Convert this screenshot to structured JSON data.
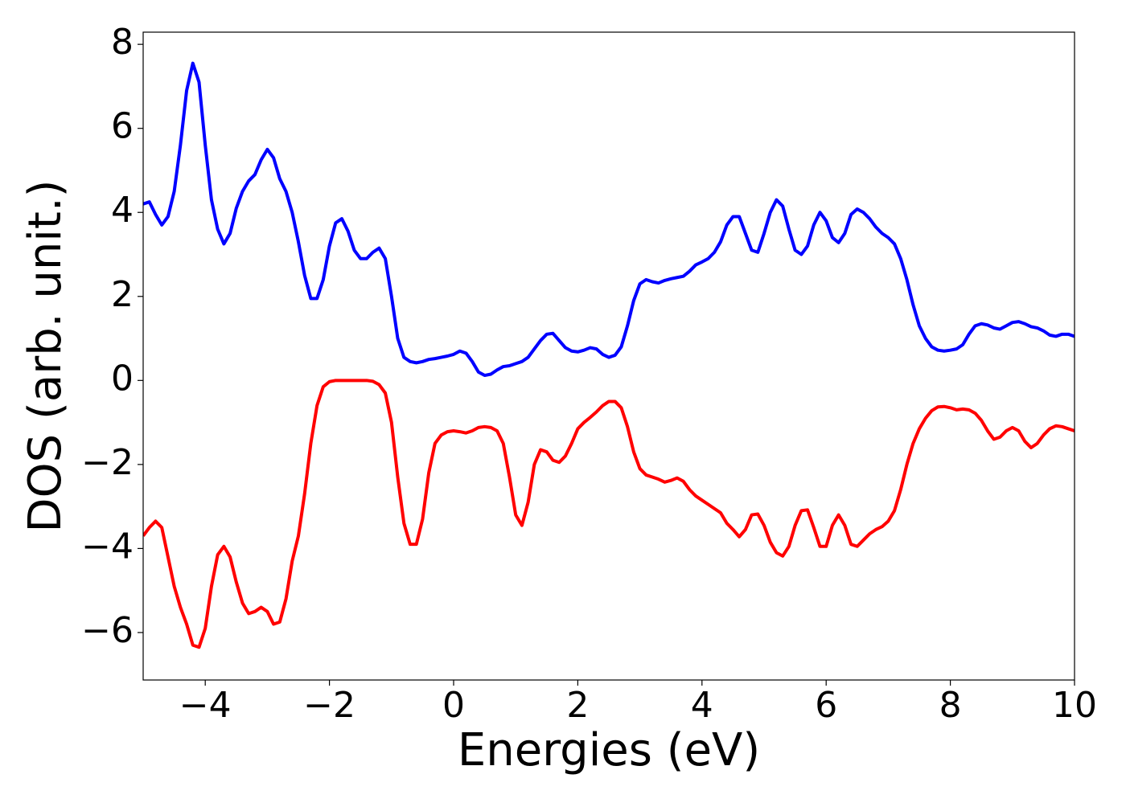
{
  "chart_data": {
    "type": "line",
    "xlabel": "Energies (eV)",
    "ylabel": "DOS (arb. unit.)",
    "xlim": [
      -5,
      10
    ],
    "ylim": [
      -7.13,
      8.29
    ],
    "xticks": [
      {
        "value": -4,
        "label": "−4"
      },
      {
        "value": -2,
        "label": "−2"
      },
      0,
      2,
      4,
      6,
      8,
      10
    ],
    "yticks": [
      {
        "value": -6,
        "label": "−6"
      },
      {
        "value": -4,
        "label": "−4"
      },
      {
        "value": -2,
        "label": "−2"
      },
      0,
      2,
      4,
      6,
      8
    ],
    "grid": false,
    "x": [
      -5,
      -4.9,
      -4.8,
      -4.7,
      -4.6,
      -4.5,
      -4.4,
      -4.3,
      -4.2,
      -4.1,
      -4,
      -3.9,
      -3.8,
      -3.7,
      -3.6,
      -3.5,
      -3.4,
      -3.3,
      -3.2,
      -3.1,
      -3,
      -2.9,
      -2.8,
      -2.7,
      -2.6,
      -2.5,
      -2.4,
      -2.3,
      -2.2,
      -2.1,
      -2,
      -1.9,
      -1.8,
      -1.7,
      -1.6,
      -1.5,
      -1.4,
      -1.3,
      -1.2,
      -1.1,
      -1,
      -0.9,
      -0.8,
      -0.7,
      -0.6,
      -0.5,
      -0.4,
      -0.3,
      -0.2,
      -0.1,
      0,
      0.1,
      0.2,
      0.3,
      0.4,
      0.5,
      0.6,
      0.7,
      0.8,
      0.9,
      1,
      1.1,
      1.2,
      1.3,
      1.4,
      1.5,
      1.6,
      1.7,
      1.8,
      1.9,
      2,
      2.1,
      2.2,
      2.3,
      2.4,
      2.5,
      2.6,
      2.7,
      2.8,
      2.9,
      3,
      3.1,
      3.2,
      3.3,
      3.4,
      3.5,
      3.6,
      3.7,
      3.8,
      3.9,
      4,
      4.1,
      4.2,
      4.3,
      4.4,
      4.5,
      4.6,
      4.7,
      4.8,
      4.9,
      5,
      5.1,
      5.2,
      5.3,
      5.4,
      5.5,
      5.6,
      5.7,
      5.8,
      5.9,
      6,
      6.1,
      6.2,
      6.3,
      6.4,
      6.5,
      6.6,
      6.7,
      6.8,
      6.9,
      7,
      7.1,
      7.2,
      7.3,
      7.4,
      7.5,
      7.6,
      7.7,
      7.8,
      7.9,
      8,
      8.1,
      8.2,
      8.3,
      8.4,
      8.5,
      8.6,
      8.7,
      8.8,
      8.9,
      9,
      9.1,
      9.2,
      9.3,
      9.4,
      9.5,
      9.6,
      9.7,
      9.8,
      9.9,
      10
    ],
    "series": [
      {
        "color": "#0000ff",
        "values": [
          4.2,
          4.25,
          3.95,
          3.7,
          3.9,
          4.5,
          5.6,
          6.9,
          7.55,
          7.1,
          5.6,
          4.3,
          3.6,
          3.25,
          3.5,
          4.1,
          4.5,
          4.75,
          4.9,
          5.25,
          5.5,
          5.3,
          4.8,
          4.5,
          4.0,
          3.3,
          2.5,
          1.95,
          1.95,
          2.4,
          3.2,
          3.75,
          3.85,
          3.55,
          3.1,
          2.9,
          2.9,
          3.05,
          3.15,
          2.9,
          2.0,
          1.0,
          0.55,
          0.45,
          0.42,
          0.45,
          0.5,
          0.52,
          0.55,
          0.58,
          0.62,
          0.7,
          0.65,
          0.45,
          0.2,
          0.12,
          0.15,
          0.25,
          0.33,
          0.35,
          0.4,
          0.45,
          0.55,
          0.75,
          0.95,
          1.1,
          1.12,
          0.95,
          0.78,
          0.7,
          0.68,
          0.72,
          0.78,
          0.75,
          0.62,
          0.55,
          0.6,
          0.8,
          1.3,
          1.9,
          2.3,
          2.4,
          2.35,
          2.32,
          2.38,
          2.42,
          2.45,
          2.48,
          2.6,
          2.75,
          2.82,
          2.9,
          3.05,
          3.3,
          3.7,
          3.9,
          3.9,
          3.5,
          3.1,
          3.05,
          3.5,
          4.0,
          4.3,
          4.15,
          3.6,
          3.1,
          3.0,
          3.2,
          3.7,
          4.0,
          3.8,
          3.4,
          3.28,
          3.5,
          3.95,
          4.08,
          4.0,
          3.85,
          3.65,
          3.5,
          3.4,
          3.25,
          2.9,
          2.4,
          1.8,
          1.3,
          1.0,
          0.8,
          0.72,
          0.7,
          0.72,
          0.75,
          0.85,
          1.1,
          1.3,
          1.35,
          1.32,
          1.25,
          1.22,
          1.3,
          1.38,
          1.4,
          1.35,
          1.28,
          1.25,
          1.18,
          1.08,
          1.05,
          1.1,
          1.1,
          1.05
        ]
      },
      {
        "color": "#ff0000",
        "values": [
          -3.7,
          -3.5,
          -3.35,
          -3.5,
          -4.2,
          -4.9,
          -5.4,
          -5.8,
          -6.3,
          -6.35,
          -5.9,
          -4.9,
          -4.15,
          -3.95,
          -4.2,
          -4.8,
          -5.3,
          -5.55,
          -5.5,
          -5.4,
          -5.5,
          -5.8,
          -5.75,
          -5.2,
          -4.3,
          -3.7,
          -2.7,
          -1.5,
          -0.6,
          -0.15,
          -0.03,
          0,
          0,
          0,
          0,
          0,
          0,
          -0.02,
          -0.1,
          -0.3,
          -1.0,
          -2.3,
          -3.4,
          -3.9,
          -3.9,
          -3.3,
          -2.2,
          -1.5,
          -1.3,
          -1.22,
          -1.2,
          -1.22,
          -1.25,
          -1.2,
          -1.12,
          -1.1,
          -1.12,
          -1.2,
          -1.5,
          -2.3,
          -3.2,
          -3.45,
          -2.9,
          -2.0,
          -1.65,
          -1.7,
          -1.9,
          -1.95,
          -1.8,
          -1.5,
          -1.15,
          -1.0,
          -0.88,
          -0.75,
          -0.6,
          -0.5,
          -0.5,
          -0.65,
          -1.1,
          -1.7,
          -2.1,
          -2.25,
          -2.3,
          -2.35,
          -2.42,
          -2.38,
          -2.32,
          -2.4,
          -2.6,
          -2.75,
          -2.85,
          -2.95,
          -3.05,
          -3.15,
          -3.4,
          -3.55,
          -3.72,
          -3.55,
          -3.2,
          -3.18,
          -3.45,
          -3.85,
          -4.1,
          -4.18,
          -3.95,
          -3.45,
          -3.1,
          -3.08,
          -3.5,
          -3.95,
          -3.95,
          -3.45,
          -3.2,
          -3.45,
          -3.9,
          -3.95,
          -3.8,
          -3.65,
          -3.55,
          -3.48,
          -3.35,
          -3.1,
          -2.6,
          -2.0,
          -1.5,
          -1.15,
          -0.9,
          -0.72,
          -0.63,
          -0.62,
          -0.65,
          -0.7,
          -0.68,
          -0.7,
          -0.78,
          -0.95,
          -1.2,
          -1.4,
          -1.35,
          -1.2,
          -1.12,
          -1.2,
          -1.45,
          -1.6,
          -1.5,
          -1.3,
          -1.15,
          -1.08,
          -1.1,
          -1.15,
          -1.2
        ]
      }
    ]
  }
}
